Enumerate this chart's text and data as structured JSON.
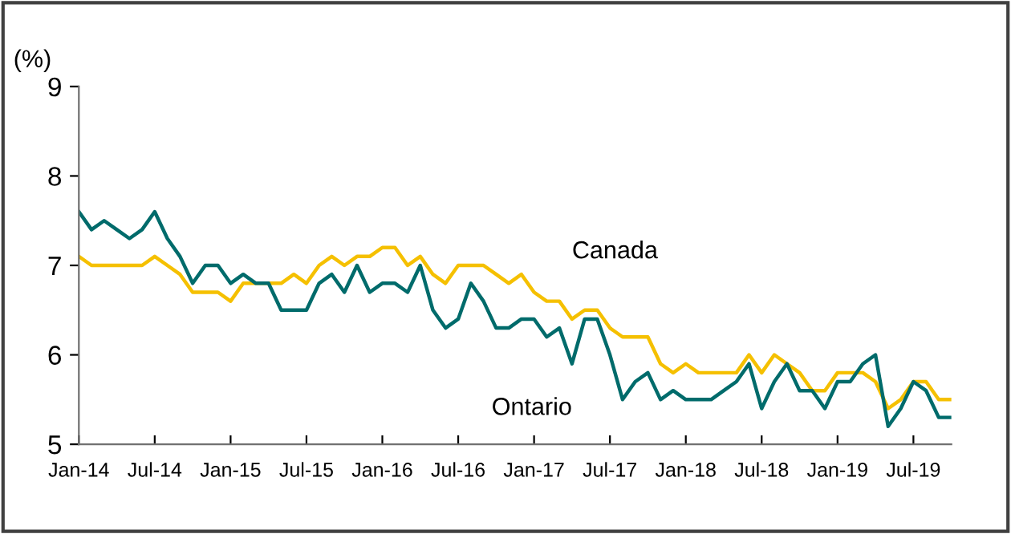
{
  "chart_data": {
    "type": "line",
    "ylabel": "(%)",
    "x": [
      "2014-01",
      "2014-02",
      "2014-03",
      "2014-04",
      "2014-05",
      "2014-06",
      "2014-07",
      "2014-08",
      "2014-09",
      "2014-10",
      "2014-11",
      "2014-12",
      "2015-01",
      "2015-02",
      "2015-03",
      "2015-04",
      "2015-05",
      "2015-06",
      "2015-07",
      "2015-08",
      "2015-09",
      "2015-10",
      "2015-11",
      "2015-12",
      "2016-01",
      "2016-02",
      "2016-03",
      "2016-04",
      "2016-05",
      "2016-06",
      "2016-07",
      "2016-08",
      "2016-09",
      "2016-10",
      "2016-11",
      "2016-12",
      "2017-01",
      "2017-02",
      "2017-03",
      "2017-04",
      "2017-05",
      "2017-06",
      "2017-07",
      "2017-08",
      "2017-09",
      "2017-10",
      "2017-11",
      "2017-12",
      "2018-01",
      "2018-02",
      "2018-03",
      "2018-04",
      "2018-05",
      "2018-06",
      "2018-07",
      "2018-08",
      "2018-09",
      "2018-10",
      "2018-11",
      "2018-12",
      "2019-01",
      "2019-02",
      "2019-03",
      "2019-04",
      "2019-05",
      "2019-06",
      "2019-07",
      "2019-08",
      "2019-09",
      "2019-10"
    ],
    "series": [
      {
        "name": "Canada",
        "color": "#f5c000",
        "values": [
          7.1,
          7.0,
          7.0,
          7.0,
          7.0,
          7.0,
          7.1,
          7.0,
          6.9,
          6.7,
          6.7,
          6.7,
          6.6,
          6.8,
          6.8,
          6.8,
          6.8,
          6.9,
          6.8,
          7.0,
          7.1,
          7.0,
          7.1,
          7.1,
          7.2,
          7.2,
          7.0,
          7.1,
          6.9,
          6.8,
          7.0,
          7.0,
          7.0,
          6.9,
          6.8,
          6.9,
          6.7,
          6.6,
          6.6,
          6.4,
          6.5,
          6.5,
          6.3,
          6.2,
          6.2,
          6.2,
          5.9,
          5.8,
          5.9,
          5.8,
          5.8,
          5.8,
          5.8,
          6.0,
          5.8,
          6.0,
          5.9,
          5.8,
          5.6,
          5.6,
          5.8,
          5.8,
          5.8,
          5.7,
          5.4,
          5.5,
          5.7,
          5.7,
          5.5,
          5.5
        ]
      },
      {
        "name": "Ontario",
        "color": "#006b6b",
        "values": [
          7.6,
          7.4,
          7.5,
          7.4,
          7.3,
          7.4,
          7.6,
          7.3,
          7.1,
          6.8,
          7.0,
          7.0,
          6.8,
          6.9,
          6.8,
          6.8,
          6.5,
          6.5,
          6.5,
          6.8,
          6.9,
          6.7,
          7.0,
          6.7,
          6.8,
          6.8,
          6.7,
          7.0,
          6.5,
          6.3,
          6.4,
          6.8,
          6.6,
          6.3,
          6.3,
          6.4,
          6.4,
          6.2,
          6.3,
          5.9,
          6.4,
          6.4,
          6.0,
          5.5,
          5.7,
          5.8,
          5.5,
          5.6,
          5.5,
          5.5,
          5.5,
          5.6,
          5.7,
          5.9,
          5.4,
          5.7,
          5.9,
          5.6,
          5.6,
          5.4,
          5.7,
          5.7,
          5.9,
          6.0,
          5.2,
          5.4,
          5.7,
          5.6,
          5.3,
          5.3
        ]
      }
    ],
    "xlim": [
      "2014-01",
      "2019-10"
    ],
    "xticks": [
      {
        "value": "2014-01",
        "label": "Jan-14"
      },
      {
        "value": "2014-07",
        "label": "Jul-14"
      },
      {
        "value": "2015-01",
        "label": "Jan-15"
      },
      {
        "value": "2015-07",
        "label": "Jul-15"
      },
      {
        "value": "2016-01",
        "label": "Jan-16"
      },
      {
        "value": "2016-07",
        "label": "Jul-16"
      },
      {
        "value": "2017-01",
        "label": "Jan-17"
      },
      {
        "value": "2017-07",
        "label": "Jul-17"
      },
      {
        "value": "2018-01",
        "label": "Jan-18"
      },
      {
        "value": "2018-07",
        "label": "Jul-18"
      },
      {
        "value": "2019-01",
        "label": "Jan-19"
      },
      {
        "value": "2019-07",
        "label": "Jul-19"
      }
    ],
    "ylim": [
      5,
      9
    ],
    "yticks": [
      5,
      6,
      7,
      8,
      9
    ],
    "grid": false,
    "legend": false,
    "marker": "none",
    "line_style": "solid"
  }
}
